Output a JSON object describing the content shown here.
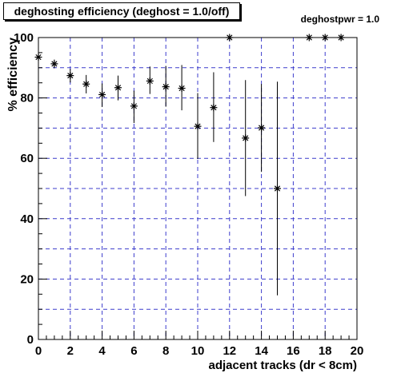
{
  "chart_data": {
    "type": "scatter",
    "title": "deghosting efficiency (deghost = 1.0/off)",
    "annotation": "deghostpwr = 1.0",
    "xlabel": "adjacent tracks (dr < 8cm)",
    "ylabel": "% efficiency",
    "xlim": [
      0,
      20
    ],
    "ylim": [
      0,
      100
    ],
    "xticks": [
      0,
      2,
      4,
      6,
      8,
      10,
      12,
      14,
      16,
      18,
      20
    ],
    "yticks": [
      0,
      20,
      40,
      60,
      80,
      100
    ],
    "grid": true,
    "marker": "asterisk",
    "series": [
      {
        "points": [
          {
            "x": 0,
            "y": 93.5,
            "lo": 92.5,
            "hi": 94.5
          },
          {
            "x": 1,
            "y": 91.3,
            "lo": 89.8,
            "hi": 92.7
          },
          {
            "x": 2,
            "y": 87.4,
            "lo": 85.1,
            "hi": 89.6
          },
          {
            "x": 3,
            "y": 84.6,
            "lo": 81.5,
            "hi": 87.6
          },
          {
            "x": 4,
            "y": 81.1,
            "lo": 77.0,
            "hi": 84.8
          },
          {
            "x": 5,
            "y": 83.4,
            "lo": 79.2,
            "hi": 87.4
          },
          {
            "x": 6,
            "y": 77.3,
            "lo": 71.7,
            "hi": 82.4
          },
          {
            "x": 7,
            "y": 85.6,
            "lo": 81.3,
            "hi": 90.4
          },
          {
            "x": 8,
            "y": 83.7,
            "lo": 77.1,
            "hi": 90.6
          },
          {
            "x": 9,
            "y": 83.2,
            "lo": 75.9,
            "hi": 90.9
          },
          {
            "x": 10,
            "y": 70.6,
            "lo": 59.8,
            "hi": 81.6
          },
          {
            "x": 11,
            "y": 76.8,
            "lo": 65.4,
            "hi": 88.5
          },
          {
            "x": 12,
            "y": 100.0,
            "lo": 100.0,
            "hi": 100.0
          },
          {
            "x": 13,
            "y": 66.7,
            "lo": 47.5,
            "hi": 85.9
          },
          {
            "x": 14,
            "y": 70.1,
            "lo": 55.5,
            "hi": 84.6
          },
          {
            "x": 15,
            "y": 50.0,
            "lo": 14.6,
            "hi": 85.4
          },
          {
            "x": 17,
            "y": 100.0,
            "lo": 100.0,
            "hi": 100.0
          },
          {
            "x": 18,
            "y": 100.0,
            "lo": 100.0,
            "hi": 100.0
          },
          {
            "x": 19,
            "y": 100.0,
            "lo": 100.0,
            "hi": 100.0
          }
        ]
      }
    ]
  },
  "colors": {
    "axis": "#000000",
    "grid": "#3c3ccc",
    "marker": "#000000"
  }
}
